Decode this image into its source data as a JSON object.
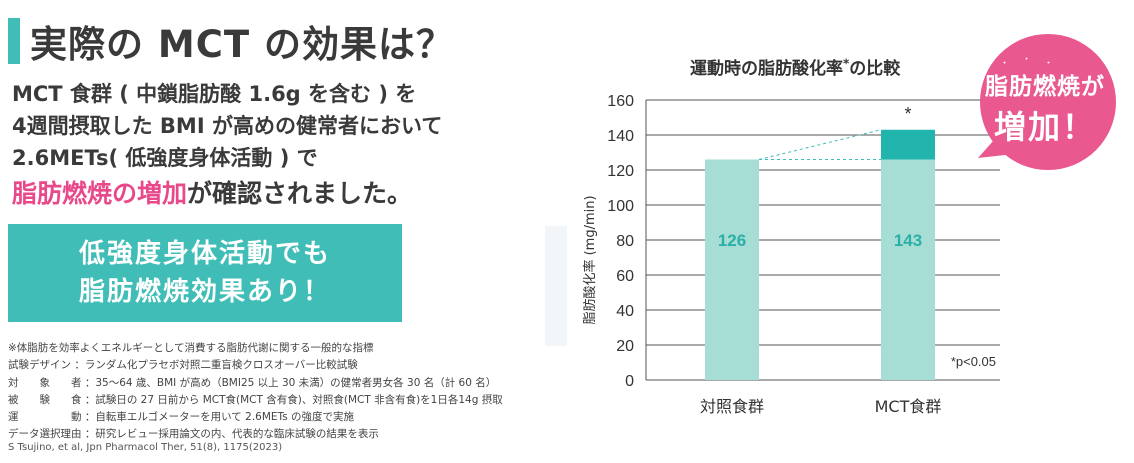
{
  "heading": {
    "title": "実際の MCT の効果は？",
    "accent_color": "#3fbdb6"
  },
  "description": {
    "line1": "MCT 食群 ( 中鎖脂肪酸 1.6g を含む ) を",
    "line2": "4週間摂取した BMI が高めの健常者において",
    "line3": "2.6METs( 低強度身体活動 ) で",
    "line4_highlight": "脂肪燃焼の増加",
    "line4_rest": "が確認されました。",
    "highlight_color": "#e8498a"
  },
  "callout": {
    "line1": "低強度身体活動でも",
    "line2": "脂肪燃焼効果あり！"
  },
  "notes": [
    "※体脂肪を効率よくエネルギーとして消費する脂肪代謝に関する一般的な指標",
    "試験デザイン ：ランダム化プラセボ対照二重盲検クロスオーバー比較試験",
    "対　　象　　者 ：35〜64 歳、BMI が高め（BMI25 以上 30 未満）の健常者男女各 30 名（計 60 名）",
    "被　　験　　食 ：試験日の 27 日前から MCT食(MCT 含有食)、対照食(MCT 非含有食)を1日各14g 摂取",
    "運　　　　　動 ：自転車エルゴメーターを用いて 2.6METs の強度で実施",
    "データ選択理由 ：研究レビュー採用論文の内、代表的な臨床試験の結果を表示"
  ],
  "citation": "S Tsujino, et al, Jpn Pharmacol Ther, 51(8), 1175(2023)",
  "badge": {
    "line1": "脂肪燃焼が",
    "line2": "増加！",
    "color": "#e9588f"
  },
  "chart_data": {
    "type": "bar",
    "title": "運動時の脂肪酸化率",
    "title_mark": "*",
    "xlabel": "",
    "ylabel": "脂肪酸化率 (mg/min)",
    "categories": [
      "対照食群",
      "MCT食群"
    ],
    "values": [
      126,
      143
    ],
    "value_labels": [
      "126",
      "143"
    ],
    "ylim": [
      0,
      160
    ],
    "yticks": [
      0,
      20,
      40,
      60,
      80,
      100,
      120,
      140,
      160
    ],
    "grid": true,
    "significance_mark": "*",
    "footnote": "*p<0.05",
    "bar_color": "#a6ddd4",
    "increase_color": "#22b5ad",
    "label_color": "#2ab0a8"
  }
}
